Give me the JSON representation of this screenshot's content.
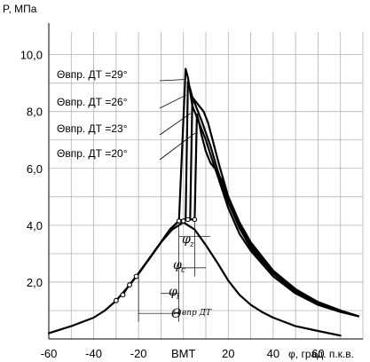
{
  "chart_data": {
    "type": "line",
    "ylabel": "P, МПа",
    "xlabel": "φ, град. п.к.в.",
    "xlim": [
      -60,
      80
    ],
    "ylim": [
      0,
      10.8
    ],
    "x_ticks": [
      {
        "value": -60,
        "label": "-60"
      },
      {
        "value": -40,
        "label": "-40"
      },
      {
        "value": -20,
        "label": "-20"
      },
      {
        "value": 0,
        "label": "ВМТ"
      },
      {
        "value": 20,
        "label": "20"
      },
      {
        "value": 40,
        "label": "40"
      },
      {
        "value": 60,
        "label": "60"
      }
    ],
    "y_ticks": [
      {
        "value": 2,
        "label": "2,0"
      },
      {
        "value": 4,
        "label": "4,0"
      },
      {
        "value": 6,
        "label": "6,0"
      },
      {
        "value": 8,
        "label": "8,0"
      },
      {
        "value": 10,
        "label": "10,0"
      }
    ],
    "grid": true,
    "motoring_curve": {
      "x": [
        -60,
        -50,
        -40,
        -35,
        -30,
        -25,
        -20,
        -15,
        -10,
        -5,
        0,
        5,
        10,
        15,
        20,
        25,
        30,
        35,
        40,
        50,
        60,
        70
      ],
      "y": [
        0.2,
        0.45,
        0.75,
        1.0,
        1.35,
        1.8,
        2.3,
        2.85,
        3.4,
        3.85,
        4.1,
        3.85,
        3.3,
        2.7,
        2.05,
        1.55,
        1.2,
        0.95,
        0.75,
        0.45,
        0.28,
        0.12
      ]
    },
    "series": [
      {
        "name": "Θвпр. ДТ =29°",
        "x": [
          -30,
          -25,
          -20,
          -15,
          -10,
          -6,
          -2,
          1,
          2,
          3,
          4,
          6,
          8,
          10,
          12,
          15,
          20,
          25,
          30,
          40,
          50,
          60,
          70,
          78
        ],
        "y": [
          1.35,
          1.8,
          2.3,
          2.85,
          3.4,
          3.85,
          4.15,
          9.5,
          9.2,
          8.7,
          8.2,
          7.8,
          7.4,
          7.0,
          6.5,
          5.8,
          4.6,
          3.7,
          3.1,
          2.2,
          1.6,
          1.2,
          0.95,
          0.8
        ]
      },
      {
        "name": "Θвпр. ДТ =26°",
        "x": [
          -27,
          -25,
          -20,
          -15,
          -10,
          -6,
          -2,
          0,
          1,
          2,
          3,
          4,
          6,
          8,
          10,
          12,
          15,
          20,
          25,
          30,
          40,
          50,
          60,
          70,
          78
        ],
        "y": [
          1.55,
          1.8,
          2.3,
          2.85,
          3.4,
          3.85,
          4.15,
          4.15,
          4.2,
          9.05,
          8.8,
          8.5,
          8.1,
          7.7,
          7.25,
          6.8,
          6.0,
          4.8,
          3.9,
          3.2,
          2.3,
          1.65,
          1.25,
          1.0,
          0.8
        ]
      },
      {
        "name": "Θвпр. ДТ =23°",
        "x": [
          -24,
          -20,
          -15,
          -10,
          -6,
          -2,
          0,
          2,
          3,
          4,
          5,
          7,
          9,
          11,
          13,
          16,
          20,
          25,
          30,
          40,
          50,
          60,
          70,
          78
        ],
        "y": [
          1.9,
          2.3,
          2.85,
          3.4,
          3.85,
          4.15,
          4.15,
          4.2,
          4.2,
          8.5,
          8.4,
          8.2,
          8.0,
          7.6,
          7.0,
          6.1,
          5.0,
          4.0,
          3.3,
          2.35,
          1.7,
          1.3,
          1.0,
          0.8
        ]
      },
      {
        "name": "Θвпр. ДТ =20°",
        "x": [
          -21,
          -15,
          -10,
          -6,
          -2,
          0,
          2,
          4,
          5,
          6,
          7,
          8,
          10,
          12,
          14,
          17,
          20,
          25,
          30,
          40,
          50,
          60,
          70,
          78
        ],
        "y": [
          2.2,
          2.85,
          3.4,
          3.85,
          4.15,
          4.2,
          4.2,
          4.2,
          4.2,
          7.9,
          7.6,
          7.2,
          6.6,
          6.2,
          6.0,
          5.6,
          5.0,
          4.1,
          3.4,
          2.4,
          1.75,
          1.3,
          1.0,
          0.8
        ]
      }
    ],
    "annotations": {
      "phi_z": "φ",
      "phi_z_sub": "z",
      "phi_c": "φ",
      "phi_c_sub": "c",
      "phi_i": "φ",
      "phi_i_sub": "i",
      "theta": "Θ",
      "theta_sub": "впр ДТ"
    }
  }
}
